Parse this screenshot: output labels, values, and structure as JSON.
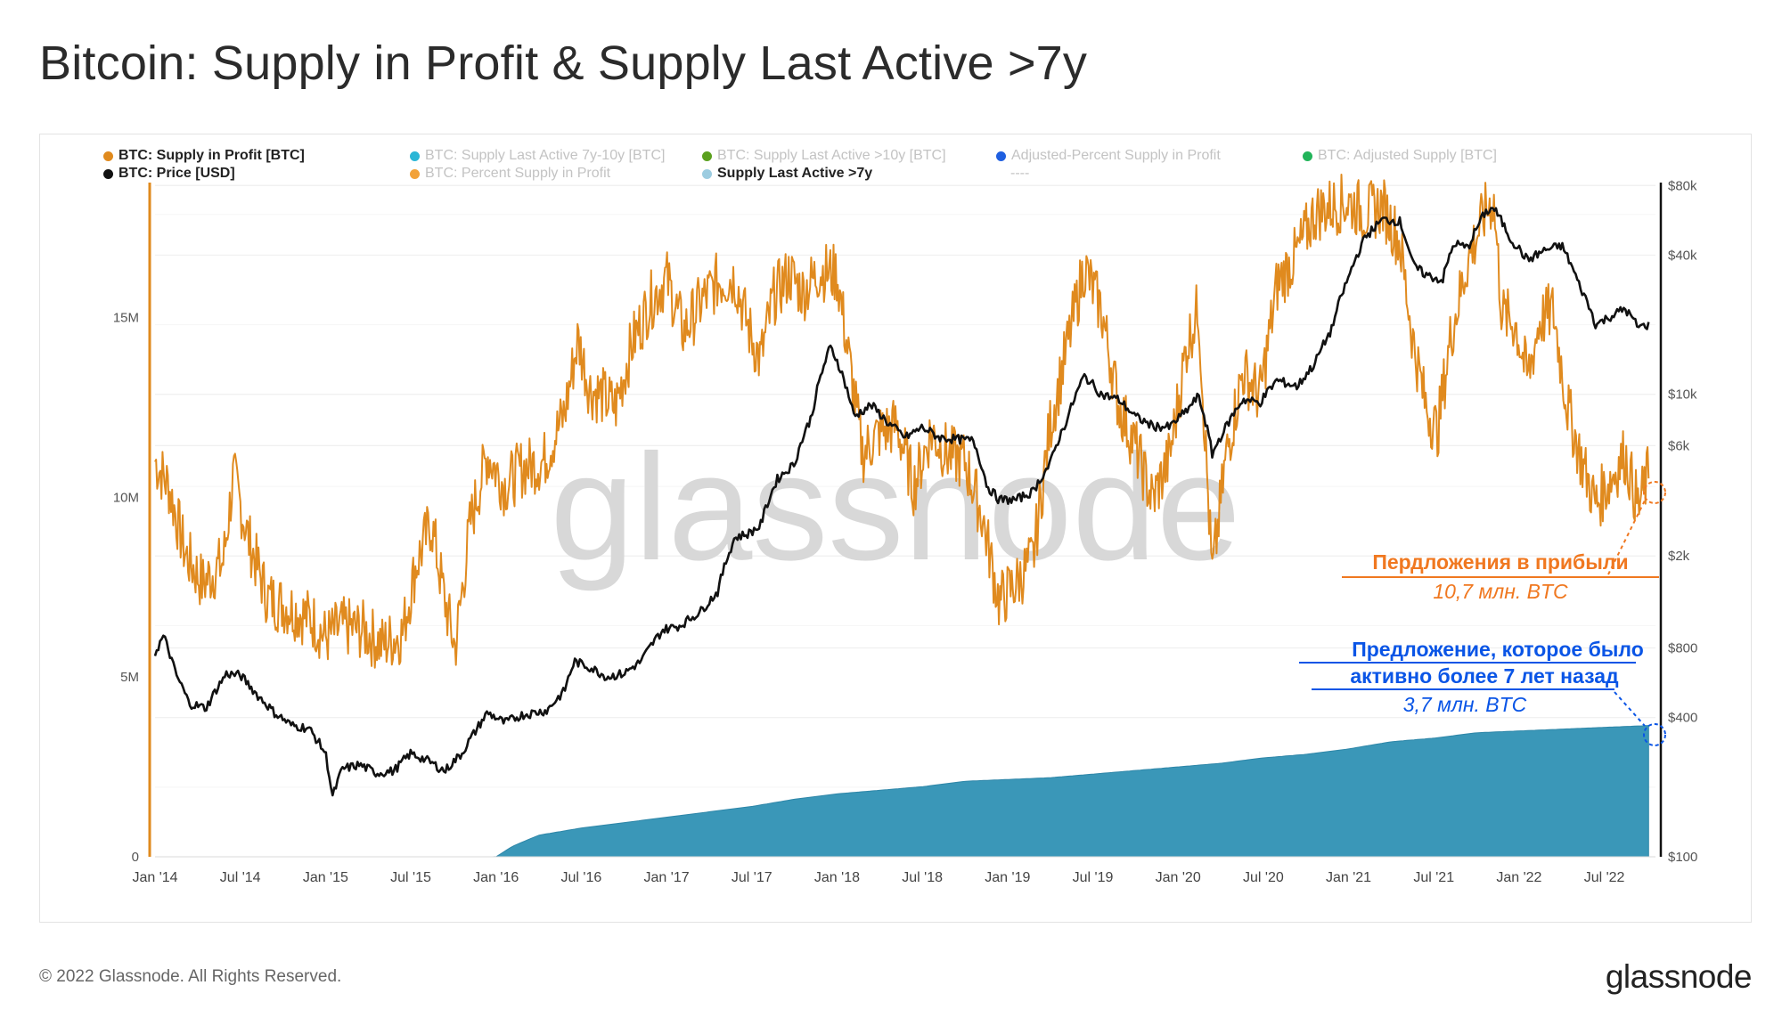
{
  "title": "Bitcoin: Supply in Profit & Supply Last Active >7y",
  "legend": [
    {
      "label": "BTC: Supply in Profit [BTC]",
      "color": "#e08a1e",
      "active": true
    },
    {
      "label": "BTC: Supply Last Active 7y-10y [BTC]",
      "color": "#2bb6d6",
      "active": false
    },
    {
      "label": "BTC: Supply Last Active >10y [BTC]",
      "color": "#5aa01e",
      "active": false
    },
    {
      "label": "Adjusted-Percent Supply in Profit",
      "color": "#1f5fe0",
      "active": false
    },
    {
      "label": "BTC: Adjusted Supply [BTC]",
      "color": "#22b45a",
      "active": false
    },
    {
      "label": "BTC: Price [USD]",
      "color": "#111111",
      "active": true
    },
    {
      "label": "BTC: Percent Supply in Profit",
      "color": "#f2a23a",
      "active": false
    },
    {
      "label": "Supply Last Active >7y",
      "color": "#9ccce0",
      "active": true
    },
    {
      "label": "----",
      "color": "",
      "active": false
    }
  ],
  "watermark": "glassnode",
  "annotations": {
    "profit_title": "Пердложения в прибыли",
    "profit_value": "10,7 млн. BTC",
    "old_title_1": "Предложение, которое было",
    "old_title_2": "активно более 7 лет назад",
    "old_value": "3,7 млн. BTC",
    "profit_color": "#f07820",
    "old_color": "#0a55e6"
  },
  "footer": "© 2022 Glassnode. All Rights Reserved.",
  "brand": "glassnode",
  "chart_data": {
    "type": "line",
    "x_tick_labels": [
      "Jan '14",
      "Jul '14",
      "Jan '15",
      "Jul '15",
      "Jan '16",
      "Jul '16",
      "Jan '17",
      "Jul '17",
      "Jan '18",
      "Jul '18",
      "Jan '19",
      "Jul '19",
      "Jan '20",
      "Jul '20",
      "Jan '21",
      "Jul '21",
      "Jan '22",
      "Jul '22"
    ],
    "x_range": [
      "2014-01",
      "2022-10"
    ],
    "left_axis": {
      "ticks": [
        "0",
        "5M",
        "10M",
        "15M"
      ],
      "tick_values": [
        0,
        5000000,
        10000000,
        15000000
      ],
      "range": [
        0,
        19000000
      ]
    },
    "right_axis": {
      "scale": "log",
      "ticks": [
        "$100",
        "$400",
        "$800",
        "$2k",
        "$6k",
        "$10k",
        "$40k",
        "$80k"
      ],
      "tick_values": [
        100,
        400,
        800,
        2000,
        6000,
        10000,
        40000,
        80000
      ],
      "range": [
        100,
        90000
      ]
    },
    "series": [
      {
        "name": "BTC: Supply in Profit [BTC]",
        "axis": "left",
        "color": "#e08a1e",
        "style": "line",
        "points": [
          [
            2014.0,
            11.0
          ],
          [
            2014.08,
            10.3
          ],
          [
            2014.18,
            8.4
          ],
          [
            2014.28,
            7.6
          ],
          [
            2014.4,
            8.2
          ],
          [
            2014.46,
            10.6
          ],
          [
            2014.55,
            8.8
          ],
          [
            2014.66,
            7.2
          ],
          [
            2014.8,
            6.9
          ],
          [
            2014.92,
            6.6
          ],
          [
            2015.0,
            6.1
          ],
          [
            2015.1,
            6.4
          ],
          [
            2015.22,
            6.3
          ],
          [
            2015.33,
            5.9
          ],
          [
            2015.45,
            6.2
          ],
          [
            2015.53,
            8.1
          ],
          [
            2015.62,
            9.3
          ],
          [
            2015.7,
            7.1
          ],
          [
            2015.76,
            5.8
          ],
          [
            2015.85,
            9.3
          ],
          [
            2015.95,
            11.2
          ],
          [
            2016.05,
            10.3
          ],
          [
            2016.15,
            10.8
          ],
          [
            2016.28,
            11.0
          ],
          [
            2016.4,
            12.3
          ],
          [
            2016.48,
            14.4
          ],
          [
            2016.55,
            13.0
          ],
          [
            2016.63,
            12.8
          ],
          [
            2016.7,
            12.5
          ],
          [
            2016.8,
            14.3
          ],
          [
            2016.9,
            15.4
          ],
          [
            2017.0,
            16.1
          ],
          [
            2017.1,
            14.6
          ],
          [
            2017.2,
            15.4
          ],
          [
            2017.3,
            16.0
          ],
          [
            2017.4,
            16.1
          ],
          [
            2017.48,
            14.7
          ],
          [
            2017.55,
            13.8
          ],
          [
            2017.63,
            15.6
          ],
          [
            2017.72,
            16.2
          ],
          [
            2017.8,
            15.7
          ],
          [
            2017.9,
            16.3
          ],
          [
            2018.0,
            16.2
          ],
          [
            2018.08,
            13.5
          ],
          [
            2018.15,
            11.2
          ],
          [
            2018.25,
            11.8
          ],
          [
            2018.35,
            12.0
          ],
          [
            2018.45,
            10.3
          ],
          [
            2018.55,
            11.8
          ],
          [
            2018.65,
            11.2
          ],
          [
            2018.75,
            11.0
          ],
          [
            2018.85,
            9.5
          ],
          [
            2018.95,
            7.1
          ],
          [
            2019.05,
            7.6
          ],
          [
            2019.15,
            8.3
          ],
          [
            2019.25,
            12.0
          ],
          [
            2019.35,
            14.2
          ],
          [
            2019.45,
            16.4
          ],
          [
            2019.55,
            15.2
          ],
          [
            2019.65,
            12.6
          ],
          [
            2019.75,
            11.4
          ],
          [
            2019.85,
            9.9
          ],
          [
            2019.95,
            11.1
          ],
          [
            2020.05,
            14.2
          ],
          [
            2020.12,
            15.3
          ],
          [
            2020.2,
            7.8
          ],
          [
            2020.28,
            11.1
          ],
          [
            2020.38,
            13.5
          ],
          [
            2020.48,
            12.8
          ],
          [
            2020.58,
            15.9
          ],
          [
            2020.7,
            16.8
          ],
          [
            2020.8,
            17.9
          ],
          [
            2020.9,
            18.1
          ],
          [
            2021.0,
            18.2
          ],
          [
            2021.1,
            17.9
          ],
          [
            2021.2,
            18.1
          ],
          [
            2021.3,
            17.1
          ],
          [
            2021.38,
            14.3
          ],
          [
            2021.45,
            12.6
          ],
          [
            2021.52,
            11.8
          ],
          [
            2021.6,
            14.5
          ],
          [
            2021.7,
            16.6
          ],
          [
            2021.8,
            17.9
          ],
          [
            2021.85,
            18.3
          ],
          [
            2021.9,
            15.1
          ],
          [
            2021.98,
            14.8
          ],
          [
            2022.05,
            13.3
          ],
          [
            2022.12,
            14.9
          ],
          [
            2022.2,
            15.2
          ],
          [
            2022.28,
            12.6
          ],
          [
            2022.36,
            11.1
          ],
          [
            2022.45,
            9.8
          ],
          [
            2022.55,
            10.6
          ],
          [
            2022.62,
            11.2
          ],
          [
            2022.7,
            9.7
          ],
          [
            2022.76,
            10.7
          ]
        ]
      },
      {
        "name": "BTC: Price [USD]",
        "axis": "right",
        "color": "#111111",
        "style": "line",
        "points": [
          [
            2014.0,
            760
          ],
          [
            2014.05,
            900
          ],
          [
            2014.12,
            620
          ],
          [
            2014.2,
            460
          ],
          [
            2014.3,
            440
          ],
          [
            2014.42,
            620
          ],
          [
            2014.5,
            610
          ],
          [
            2014.6,
            500
          ],
          [
            2014.7,
            420
          ],
          [
            2014.8,
            370
          ],
          [
            2014.9,
            360
          ],
          [
            2015.0,
            280
          ],
          [
            2015.04,
            180
          ],
          [
            2015.1,
            240
          ],
          [
            2015.2,
            250
          ],
          [
            2015.3,
            230
          ],
          [
            2015.4,
            235
          ],
          [
            2015.5,
            280
          ],
          [
            2015.6,
            260
          ],
          [
            2015.7,
            235
          ],
          [
            2015.8,
            280
          ],
          [
            2015.88,
            350
          ],
          [
            2015.95,
            420
          ],
          [
            2016.05,
            380
          ],
          [
            2016.15,
            410
          ],
          [
            2016.3,
            430
          ],
          [
            2016.4,
            520
          ],
          [
            2016.46,
            700
          ],
          [
            2016.55,
            660
          ],
          [
            2016.65,
            600
          ],
          [
            2016.75,
            620
          ],
          [
            2016.85,
            700
          ],
          [
            2016.98,
            960
          ],
          [
            2017.08,
            1000
          ],
          [
            2017.2,
            1150
          ],
          [
            2017.3,
            1400
          ],
          [
            2017.4,
            2400
          ],
          [
            2017.48,
            2500
          ],
          [
            2017.55,
            2700
          ],
          [
            2017.65,
            4300
          ],
          [
            2017.75,
            5000
          ],
          [
            2017.85,
            8000
          ],
          [
            2017.96,
            16000
          ],
          [
            2018.0,
            14000
          ],
          [
            2018.05,
            11000
          ],
          [
            2018.1,
            8000
          ],
          [
            2018.2,
            9000
          ],
          [
            2018.3,
            7500
          ],
          [
            2018.4,
            6500
          ],
          [
            2018.5,
            7200
          ],
          [
            2018.6,
            6500
          ],
          [
            2018.7,
            6400
          ],
          [
            2018.8,
            6300
          ],
          [
            2018.88,
            4000
          ],
          [
            2018.95,
            3500
          ],
          [
            2019.05,
            3500
          ],
          [
            2019.15,
            3800
          ],
          [
            2019.25,
            5000
          ],
          [
            2019.35,
            7800
          ],
          [
            2019.45,
            12000
          ],
          [
            2019.55,
            10000
          ],
          [
            2019.65,
            9500
          ],
          [
            2019.75,
            8000
          ],
          [
            2019.85,
            7300
          ],
          [
            2019.95,
            7200
          ],
          [
            2020.05,
            8500
          ],
          [
            2020.12,
            9800
          ],
          [
            2020.2,
            5500
          ],
          [
            2020.28,
            7200
          ],
          [
            2020.38,
            9500
          ],
          [
            2020.48,
            9200
          ],
          [
            2020.58,
            11500
          ],
          [
            2020.7,
            10800
          ],
          [
            2020.8,
            13500
          ],
          [
            2020.9,
            19000
          ],
          [
            2021.0,
            32000
          ],
          [
            2021.1,
            48000
          ],
          [
            2021.2,
            57000
          ],
          [
            2021.3,
            56000
          ],
          [
            2021.38,
            36000
          ],
          [
            2021.45,
            33000
          ],
          [
            2021.55,
            31000
          ],
          [
            2021.62,
            45000
          ],
          [
            2021.7,
            43000
          ],
          [
            2021.8,
            61000
          ],
          [
            2021.85,
            64000
          ],
          [
            2021.95,
            47000
          ],
          [
            2022.05,
            38000
          ],
          [
            2022.15,
            42000
          ],
          [
            2022.25,
            44000
          ],
          [
            2022.35,
            30000
          ],
          [
            2022.45,
            20000
          ],
          [
            2022.55,
            22000
          ],
          [
            2022.62,
            23500
          ],
          [
            2022.7,
            19500
          ],
          [
            2022.76,
            20000
          ]
        ]
      },
      {
        "name": "Supply Last Active >7y",
        "axis": "left",
        "color": "#3a97b8",
        "style": "area",
        "points": [
          [
            2014.0,
            0
          ],
          [
            2016.0,
            0
          ],
          [
            2016.1,
            0.3
          ],
          [
            2016.25,
            0.6
          ],
          [
            2016.5,
            0.8
          ],
          [
            2016.75,
            0.95
          ],
          [
            2017.0,
            1.1
          ],
          [
            2017.25,
            1.25
          ],
          [
            2017.5,
            1.4
          ],
          [
            2017.75,
            1.6
          ],
          [
            2018.0,
            1.75
          ],
          [
            2018.25,
            1.85
          ],
          [
            2018.5,
            1.95
          ],
          [
            2018.75,
            2.1
          ],
          [
            2019.0,
            2.15
          ],
          [
            2019.25,
            2.2
          ],
          [
            2019.5,
            2.3
          ],
          [
            2019.75,
            2.4
          ],
          [
            2020.0,
            2.5
          ],
          [
            2020.25,
            2.6
          ],
          [
            2020.5,
            2.75
          ],
          [
            2020.75,
            2.85
          ],
          [
            2021.0,
            3.0
          ],
          [
            2021.25,
            3.2
          ],
          [
            2021.5,
            3.3
          ],
          [
            2021.75,
            3.45
          ],
          [
            2022.0,
            3.5
          ],
          [
            2022.25,
            3.55
          ],
          [
            2022.5,
            3.6
          ],
          [
            2022.76,
            3.65
          ]
        ]
      }
    ]
  }
}
